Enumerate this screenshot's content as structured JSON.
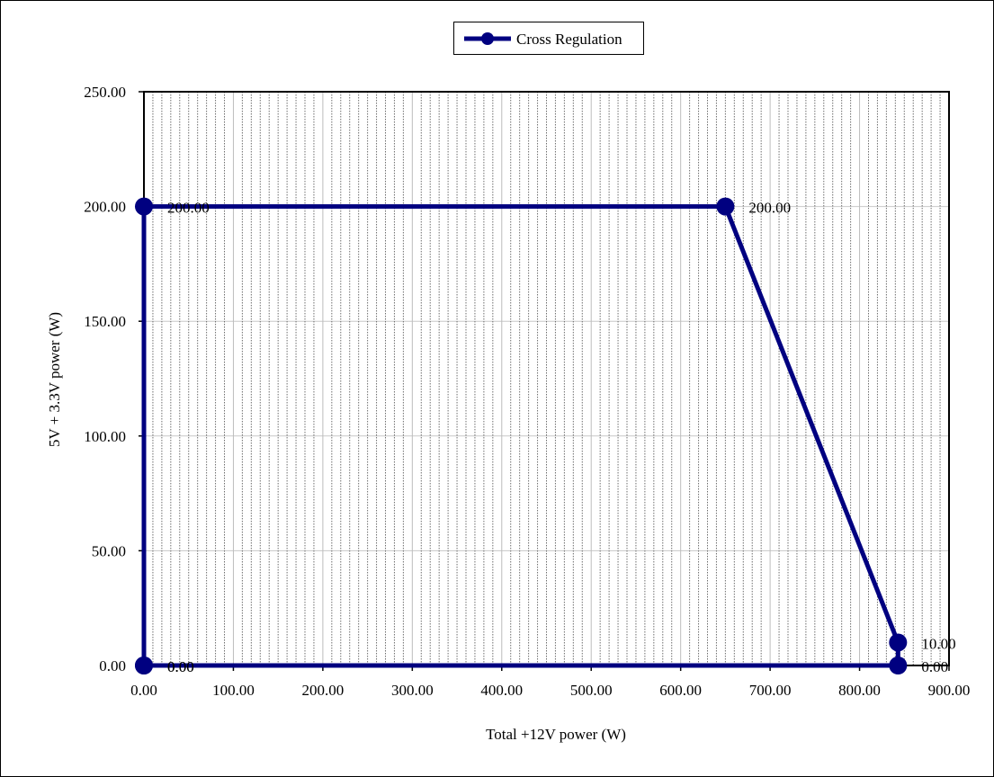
{
  "chart_data": {
    "type": "line",
    "title": "",
    "xlabel": "Total +12V power (W)",
    "ylabel": "5V + 3.3V power (W)",
    "xlim": [
      0,
      900
    ],
    "ylim": [
      0,
      250
    ],
    "x_ticks": [
      "0.00",
      "100.00",
      "200.00",
      "300.00",
      "400.00",
      "500.00",
      "600.00",
      "700.00",
      "800.00",
      "900.00"
    ],
    "y_ticks": [
      "0.00",
      "50.00",
      "100.00",
      "150.00",
      "200.00",
      "250.00"
    ],
    "x_tick_values": [
      0,
      100,
      200,
      300,
      400,
      500,
      600,
      700,
      800,
      900
    ],
    "y_tick_values": [
      0,
      50,
      100,
      150,
      200,
      250
    ],
    "grid": true,
    "legend_position": "top-center",
    "series": [
      {
        "name": "Cross Regulation",
        "color": "#000080",
        "x": [
          0,
          0,
          650,
          843,
          843,
          0
        ],
        "y": [
          0,
          200,
          200,
          10,
          0,
          0
        ],
        "labels": [
          "0.00",
          "200.00",
          "200.00",
          "10.00",
          "0.00",
          "0.00"
        ]
      }
    ]
  }
}
